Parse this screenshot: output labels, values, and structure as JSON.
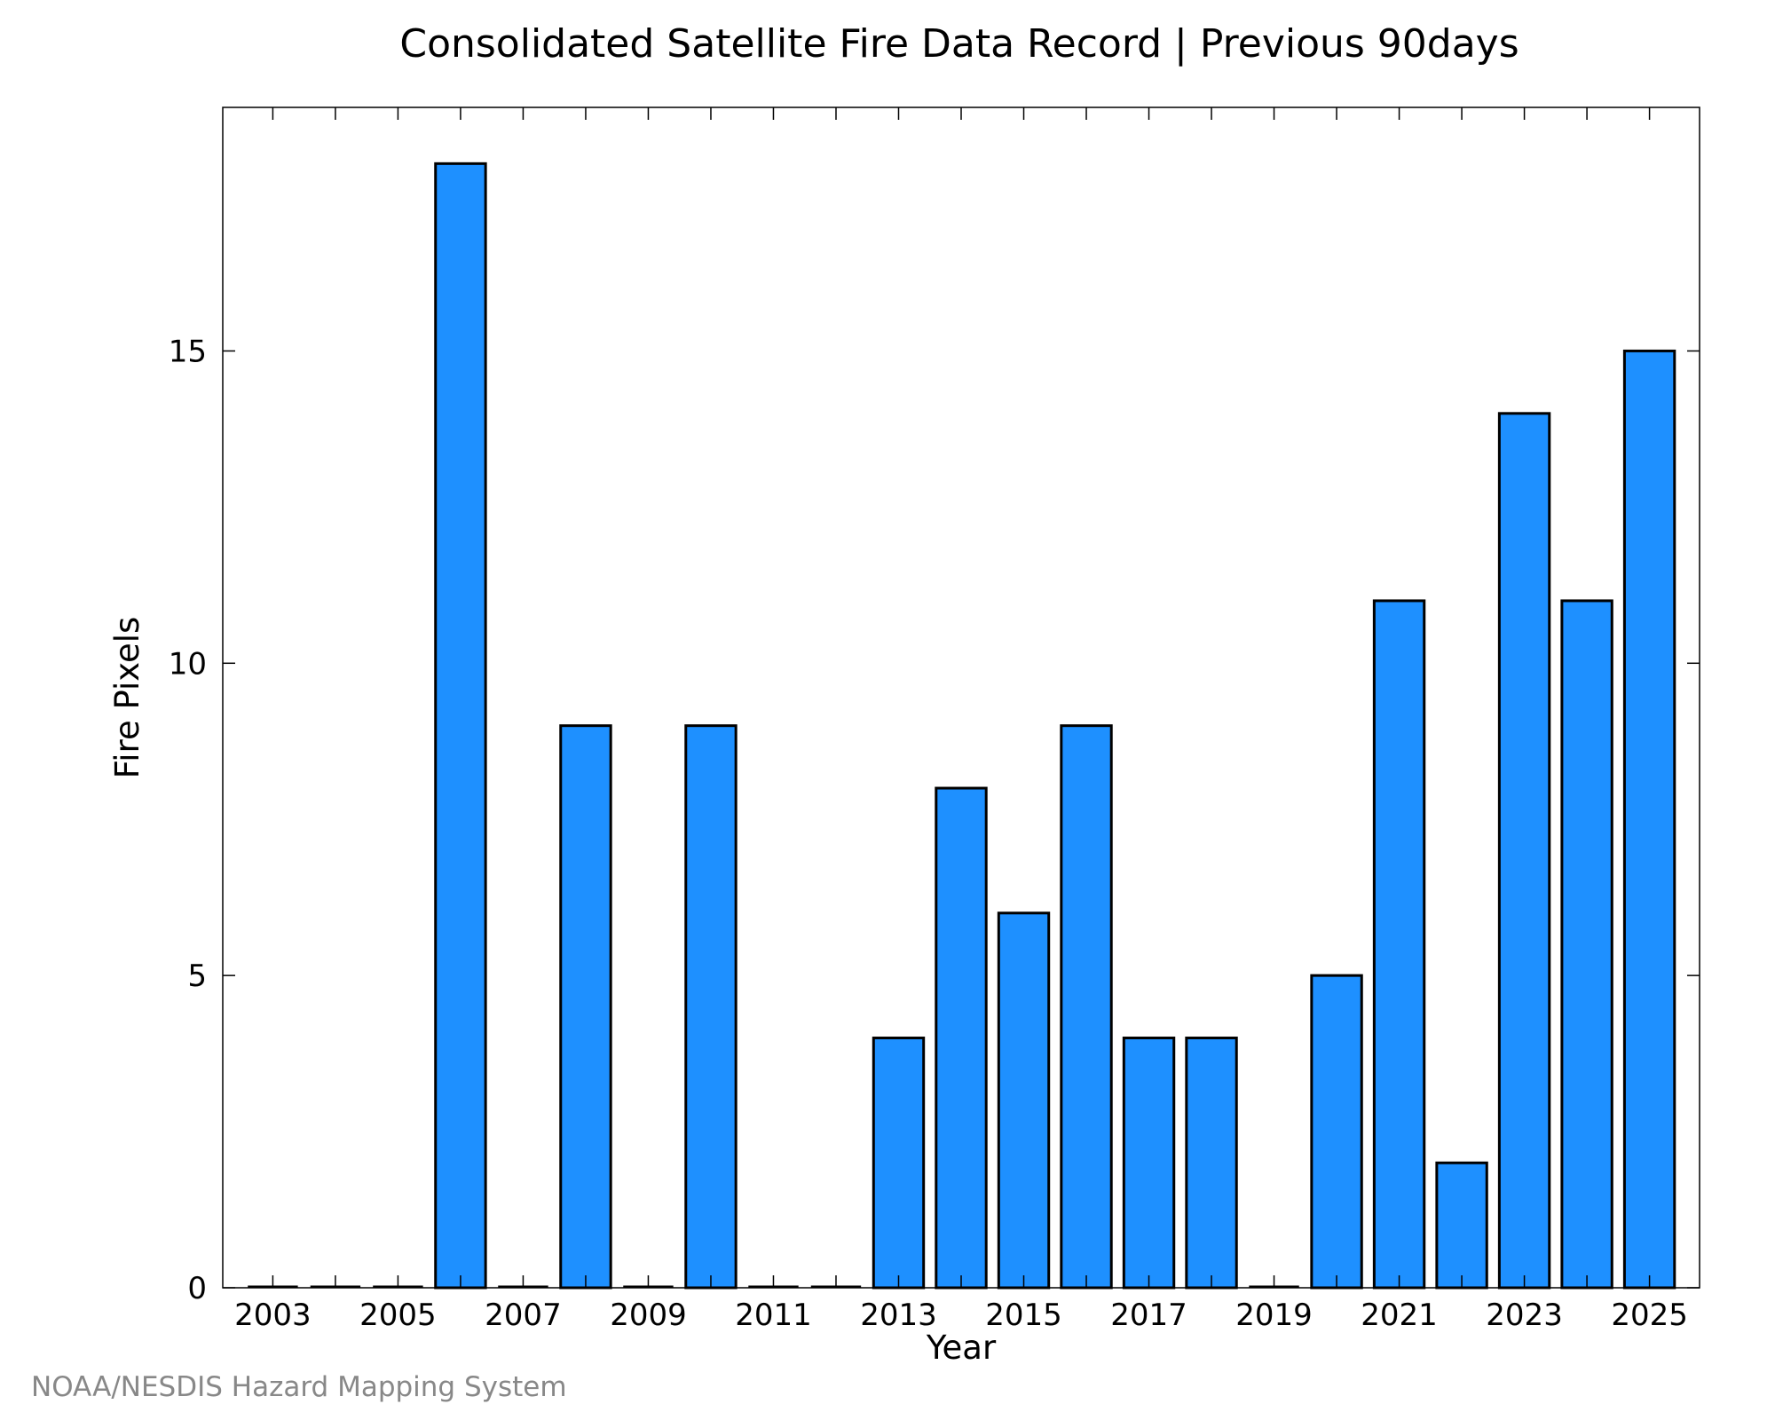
{
  "chart_data": {
    "type": "bar",
    "title": "Consolidated Satellite Fire Data Record | Previous 90days",
    "xlabel": "Year",
    "ylabel": "Fire Pixels",
    "x": [
      2003,
      2004,
      2005,
      2006,
      2007,
      2008,
      2009,
      2010,
      2011,
      2012,
      2013,
      2014,
      2015,
      2016,
      2017,
      2018,
      2019,
      2020,
      2021,
      2022,
      2023,
      2024,
      2025
    ],
    "values": [
      0,
      0,
      0,
      18,
      0,
      9,
      0,
      9,
      0,
      0,
      4,
      8,
      6,
      9,
      4,
      4,
      0,
      5,
      11,
      2,
      14,
      11,
      15
    ],
    "xticks": [
      "2003",
      "2005",
      "2007",
      "2009",
      "2011",
      "2013",
      "2015",
      "2017",
      "2019",
      "2021",
      "2023",
      "2025"
    ],
    "yticks": [
      "0",
      "5",
      "10",
      "15"
    ],
    "ylim": [
      0,
      18.9
    ],
    "xlim": [
      2002.2,
      2025.8
    ],
    "bar_color": "#1e90ff",
    "grid": false,
    "legend": false
  },
  "footer": {
    "credit": "NOAA/NESDIS Hazard Mapping System"
  }
}
